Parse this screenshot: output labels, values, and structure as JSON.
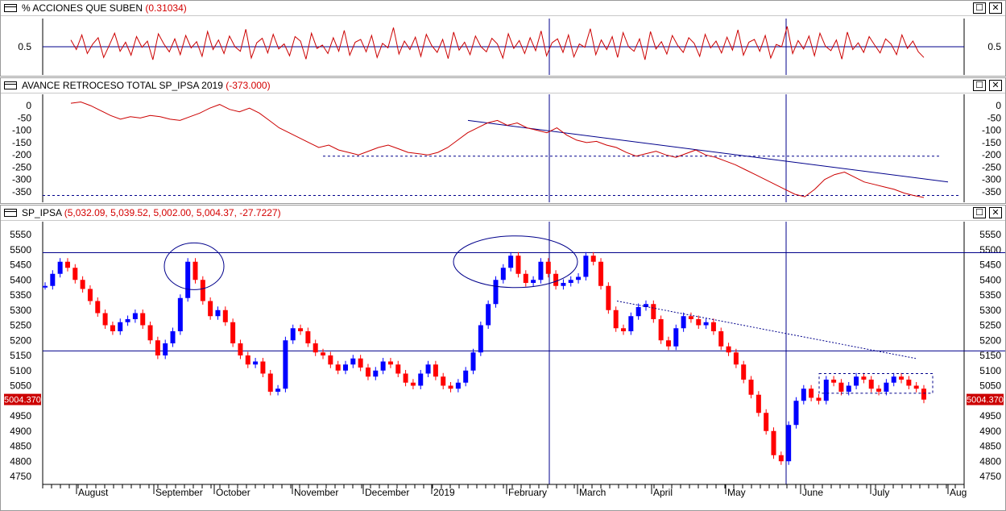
{
  "panels": {
    "breadth": {
      "title": "% ACCIONES QUE SUBEN",
      "value": "(0.31034)"
    },
    "advdec": {
      "title": "AVANCE RETROCESO TOTAL SP_IPSA 2019",
      "value": "(-373.000)"
    },
    "price": {
      "title": "SP_IPSA",
      "value": "(5,032.09, 5,039.52, 5,002.00, 5,004.37, -27.7227)"
    }
  },
  "window_buttons": {
    "maximize": "☐",
    "close": "✕"
  },
  "last_price_label": "5004.370",
  "icons": {
    "panel": "window-icon",
    "maximize": "maximize-icon",
    "close": "close-icon"
  },
  "colors": {
    "up_candle": "#0000ff",
    "down_candle": "#ff0000",
    "line": "#cc0000",
    "trendline": "#00008b",
    "price_tag_bg": "#cc0000"
  },
  "chart_data": [
    {
      "type": "line",
      "title": "% ACCIONES QUE SUBEN",
      "ylim": [
        0,
        1
      ],
      "yticks": [
        0.5
      ],
      "reference_lines": [
        0.5
      ],
      "last_value": 0.31034,
      "values": [
        0.62,
        0.45,
        0.71,
        0.38,
        0.55,
        0.66,
        0.31,
        0.52,
        0.74,
        0.42,
        0.58,
        0.35,
        0.68,
        0.49,
        0.6,
        0.27,
        0.73,
        0.55,
        0.41,
        0.64,
        0.36,
        0.7,
        0.48,
        0.59,
        0.33,
        0.77,
        0.45,
        0.62,
        0.38,
        0.69,
        0.5,
        0.42,
        0.81,
        0.3,
        0.57,
        0.65,
        0.39,
        0.72,
        0.46,
        0.55,
        0.34,
        0.68,
        0.6,
        0.28,
        0.74,
        0.47,
        0.53,
        0.38,
        0.66,
        0.42,
        0.79,
        0.35,
        0.58,
        0.63,
        0.41,
        0.7,
        0.31,
        0.56,
        0.48,
        0.84,
        0.37,
        0.6,
        0.45,
        0.67,
        0.33,
        0.72,
        0.52,
        0.4,
        0.63,
        0.29,
        0.76,
        0.44,
        0.58,
        0.36,
        0.69,
        0.5,
        0.41,
        0.65,
        0.55,
        0.3,
        0.73,
        0.47,
        0.61,
        0.38,
        0.66,
        0.43,
        0.78,
        0.34,
        0.57,
        0.64,
        0.4,
        0.71,
        0.32,
        0.55,
        0.49,
        0.82,
        0.36,
        0.62,
        0.45,
        0.68,
        0.31,
        0.75,
        0.5,
        0.42,
        0.64,
        0.27,
        0.77,
        0.46,
        0.59,
        0.37,
        0.7,
        0.52,
        0.4,
        0.66,
        0.56,
        0.33,
        0.72,
        0.48,
        0.6,
        0.39,
        0.67,
        0.44,
        0.8,
        0.35,
        0.58,
        0.63,
        0.42,
        0.7,
        0.3,
        0.54,
        0.5,
        0.86,
        0.38,
        0.61,
        0.46,
        0.69,
        0.34,
        0.74,
        0.51,
        0.43,
        0.62,
        0.28,
        0.76,
        0.45,
        0.57,
        0.4,
        0.68,
        0.53,
        0.39,
        0.64,
        0.55,
        0.36,
        0.71,
        0.47,
        0.6,
        0.41,
        0.31
      ]
    },
    {
      "type": "line",
      "title": "AVANCE RETROCESO TOTAL SP_IPSA 2019",
      "ylim": [
        -373,
        20
      ],
      "yticks": [
        0,
        -50,
        -100,
        -150,
        -200,
        -250,
        -300,
        -350
      ],
      "last_value": -373,
      "values": [
        10,
        15,
        0,
        -20,
        -40,
        -55,
        -45,
        -50,
        -40,
        -45,
        -55,
        -60,
        -45,
        -30,
        -10,
        5,
        -15,
        -25,
        -10,
        -30,
        -60,
        -90,
        -110,
        -130,
        -150,
        -170,
        -160,
        -180,
        -190,
        -200,
        -185,
        -170,
        -160,
        -175,
        -190,
        -195,
        -200,
        -190,
        -170,
        -140,
        -110,
        -90,
        -70,
        -60,
        -80,
        -70,
        -90,
        -100,
        -110,
        -90,
        -120,
        -140,
        -150,
        -145,
        -160,
        -170,
        -190,
        -205,
        -195,
        -185,
        -200,
        -210,
        -195,
        -180,
        -200,
        -210,
        -225,
        -240,
        -260,
        -280,
        -300,
        -320,
        -340,
        -360,
        -370,
        -340,
        -300,
        -280,
        -270,
        -290,
        -310,
        -320,
        -330,
        -340,
        -355,
        -365,
        -373
      ],
      "annotations": {
        "hline_dashed": [
          -205,
          -365
        ],
        "trendline_from": [
          -60,
          -310
        ]
      }
    },
    {
      "type": "candlestick",
      "title": "SP_IPSA",
      "ylim": [
        4750,
        5550
      ],
      "yticks": [
        5550,
        5500,
        5450,
        5400,
        5350,
        5300,
        5250,
        5200,
        5150,
        5100,
        5050,
        5000,
        4950,
        4900,
        4850,
        4800,
        4750
      ],
      "xlabels": [
        "August",
        "September",
        "October",
        "November",
        "December",
        "2019",
        "February",
        "March",
        "April",
        "May",
        "June",
        "July",
        "Aug"
      ],
      "reference_lines": [
        5490,
        5165
      ],
      "last": {
        "open": 5032.09,
        "high": 5039.52,
        "low": 5002.0,
        "close": 5004.37,
        "change": -27.7227
      },
      "closes": [
        5380,
        5420,
        5460,
        5440,
        5400,
        5370,
        5330,
        5290,
        5250,
        5230,
        5260,
        5270,
        5290,
        5250,
        5200,
        5150,
        5190,
        5230,
        5340,
        5460,
        5400,
        5330,
        5280,
        5300,
        5260,
        5190,
        5150,
        5120,
        5130,
        5090,
        5030,
        5040,
        5200,
        5240,
        5230,
        5190,
        5160,
        5150,
        5120,
        5100,
        5120,
        5140,
        5110,
        5080,
        5100,
        5130,
        5120,
        5090,
        5060,
        5050,
        5090,
        5120,
        5080,
        5050,
        5040,
        5060,
        5100,
        5160,
        5250,
        5320,
        5400,
        5440,
        5480,
        5420,
        5390,
        5400,
        5460,
        5420,
        5380,
        5390,
        5400,
        5410,
        5480,
        5460,
        5380,
        5300,
        5240,
        5230,
        5280,
        5310,
        5320,
        5270,
        5200,
        5180,
        5240,
        5280,
        5270,
        5250,
        5260,
        5230,
        5180,
        5160,
        5120,
        5070,
        5020,
        4960,
        4900,
        4820,
        4800,
        4920,
        5000,
        5040,
        5010,
        5000,
        5070,
        5060,
        5030,
        5050,
        5080,
        5070,
        5040,
        5030,
        5060,
        5080,
        5070,
        5050,
        5040,
        5004
      ],
      "annotations": {
        "ellipses": [
          "September",
          "January-February"
        ],
        "boxes": [
          "June-July"
        ],
        "trendline_dashed": [
          "March-July"
        ]
      }
    }
  ]
}
